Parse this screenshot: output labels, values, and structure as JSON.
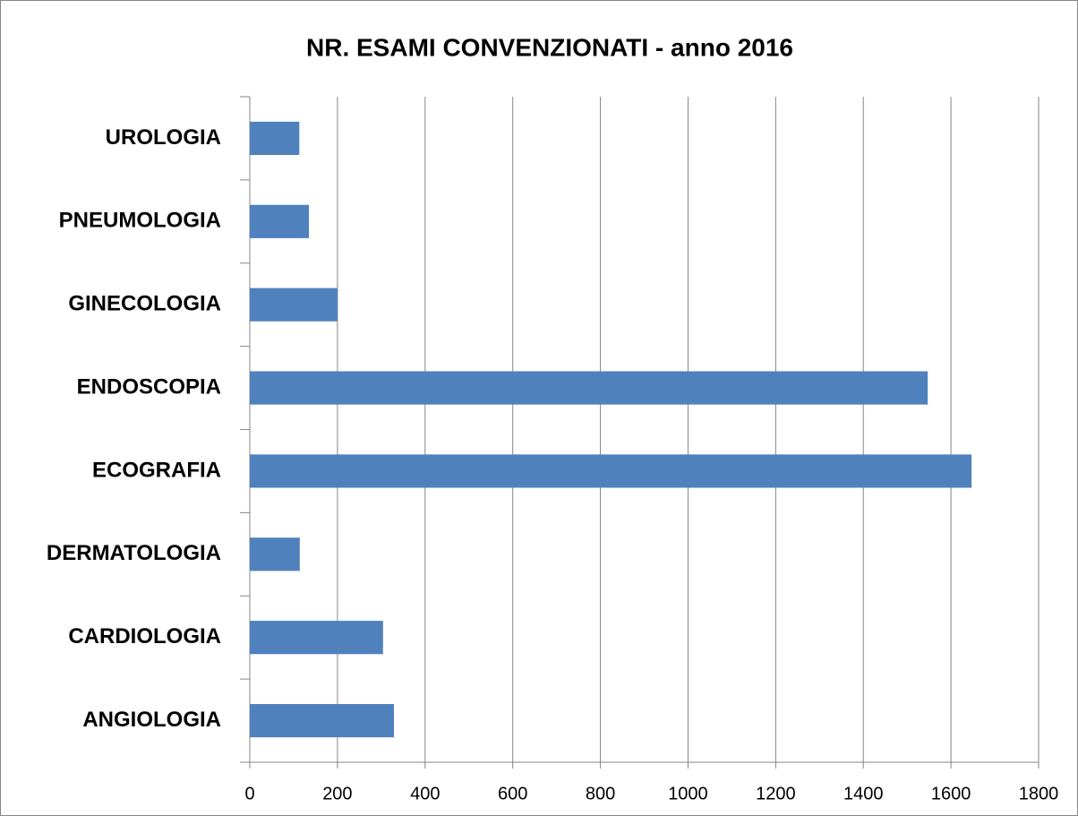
{
  "chart_data": {
    "type": "bar",
    "orientation": "horizontal",
    "title": "NR. ESAMI CONVENZIONATI - anno 2016",
    "categories": [
      "ANGIOLOGIA",
      "CARDIOLOGIA",
      "DERMATOLOGIA",
      "ECOGRAFIA",
      "ENDOSCOPIA",
      "GINECOLOGIA",
      "PNEUMOLOGIA",
      "UROLOGIA"
    ],
    "values": [
      329,
      304,
      114,
      1647,
      1547,
      200,
      135,
      113
    ],
    "color": "#4f81bd",
    "xlim": [
      0,
      1800
    ],
    "xticks": [
      0,
      200,
      400,
      600,
      800,
      1000,
      1200,
      1400,
      1600,
      1800
    ],
    "grid": true
  }
}
